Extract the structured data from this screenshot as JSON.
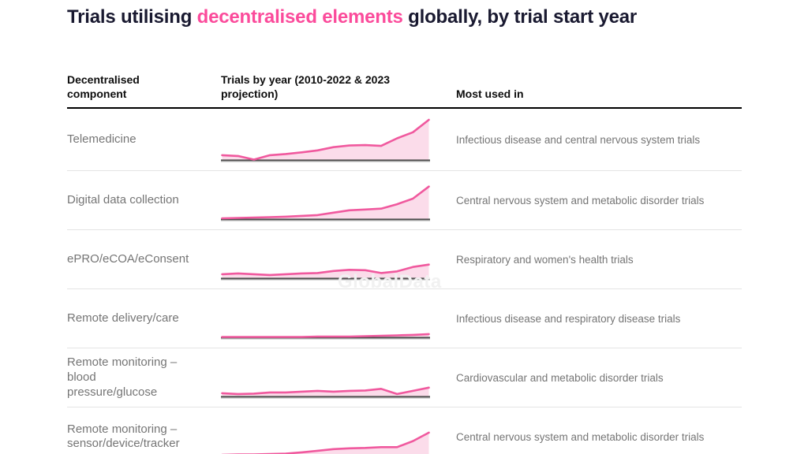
{
  "page": {
    "title": {
      "pre": "Trials utilising ",
      "highlight": "decentralised elements",
      "post": " globally, by trial start year"
    },
    "watermark": "GlobalData"
  },
  "table": {
    "headers": {
      "component": "Decentralised\ncomponent",
      "trials": "Trials by year (2010-2022 & 2023\nprojection)",
      "most_used": "Most used in"
    }
  },
  "rows": [
    {
      "component": "Telemedicine",
      "most_used": "Infectious disease and central nervous system trials"
    },
    {
      "component": "Digital data collection",
      "most_used": "Central nervous system and metabolic disorder trials"
    },
    {
      "component": "ePRO/eCOA/eConsent",
      "most_used": "Respiratory and women's health trials"
    },
    {
      "component": "Remote delivery/care",
      "most_used": "Infectious disease and respiratory disease trials"
    },
    {
      "component": "Remote monitoring –\nblood\npressure/glucose",
      "most_used": "Cardiovascular and metabolic disorder trials"
    },
    {
      "component": "Remote monitoring –\nsensor/device/tracker",
      "most_used": "Central nervous system and metabolic disorder trials"
    }
  ],
  "chart_data": {
    "type": "area",
    "title": "Trials utilising decentralised elements globally, by trial start year",
    "x": [
      2010,
      2011,
      2012,
      2013,
      2014,
      2015,
      2016,
      2017,
      2018,
      2019,
      2020,
      2021,
      2022,
      2023
    ],
    "x_note": "2010-2022 actual & 2023 projection",
    "value_scale": "normalized 0-100, estimated from sparkline pixel heights (no axis labels shown)",
    "ylim": [
      0,
      100
    ],
    "grid": false,
    "legend": false,
    "series": [
      {
        "name": "Telemedicine",
        "values": [
          12,
          10,
          1,
          12,
          15,
          19,
          24,
          32,
          36,
          37,
          35,
          54,
          69,
          100
        ]
      },
      {
        "name": "Digital data collection",
        "values": [
          2,
          3,
          4,
          5,
          6,
          8,
          10,
          16,
          22,
          24,
          26,
          37,
          51,
          81
        ]
      },
      {
        "name": "ePRO/eCOA/eConsent",
        "values": [
          10,
          12,
          10,
          8,
          10,
          12,
          13,
          18,
          21,
          20,
          13,
          17,
          28,
          34
        ]
      },
      {
        "name": "Remote delivery/care",
        "values": [
          1,
          1,
          1,
          1,
          1,
          1,
          2,
          2,
          2,
          3,
          4,
          5,
          6,
          8
        ]
      },
      {
        "name": "Remote monitoring – blood pressure/glucose",
        "values": [
          8,
          6,
          7,
          10,
          10,
          12,
          14,
          12,
          14,
          15,
          19,
          6,
          14,
          22
        ]
      },
      {
        "name": "Remote monitoring – sensor/device/tracker",
        "values": [
          2,
          3,
          3,
          4,
          5,
          8,
          12,
          16,
          18,
          19,
          21,
          21,
          36,
          57
        ]
      }
    ],
    "colors": {
      "accent_pink": "#fb4b9b",
      "spark_line": "#f0599e",
      "spark_fill": "#fbdcea",
      "spark_baseline": "#4f4f4f",
      "title_dark": "#191930",
      "row_divider": "#e4e4e4"
    }
  }
}
